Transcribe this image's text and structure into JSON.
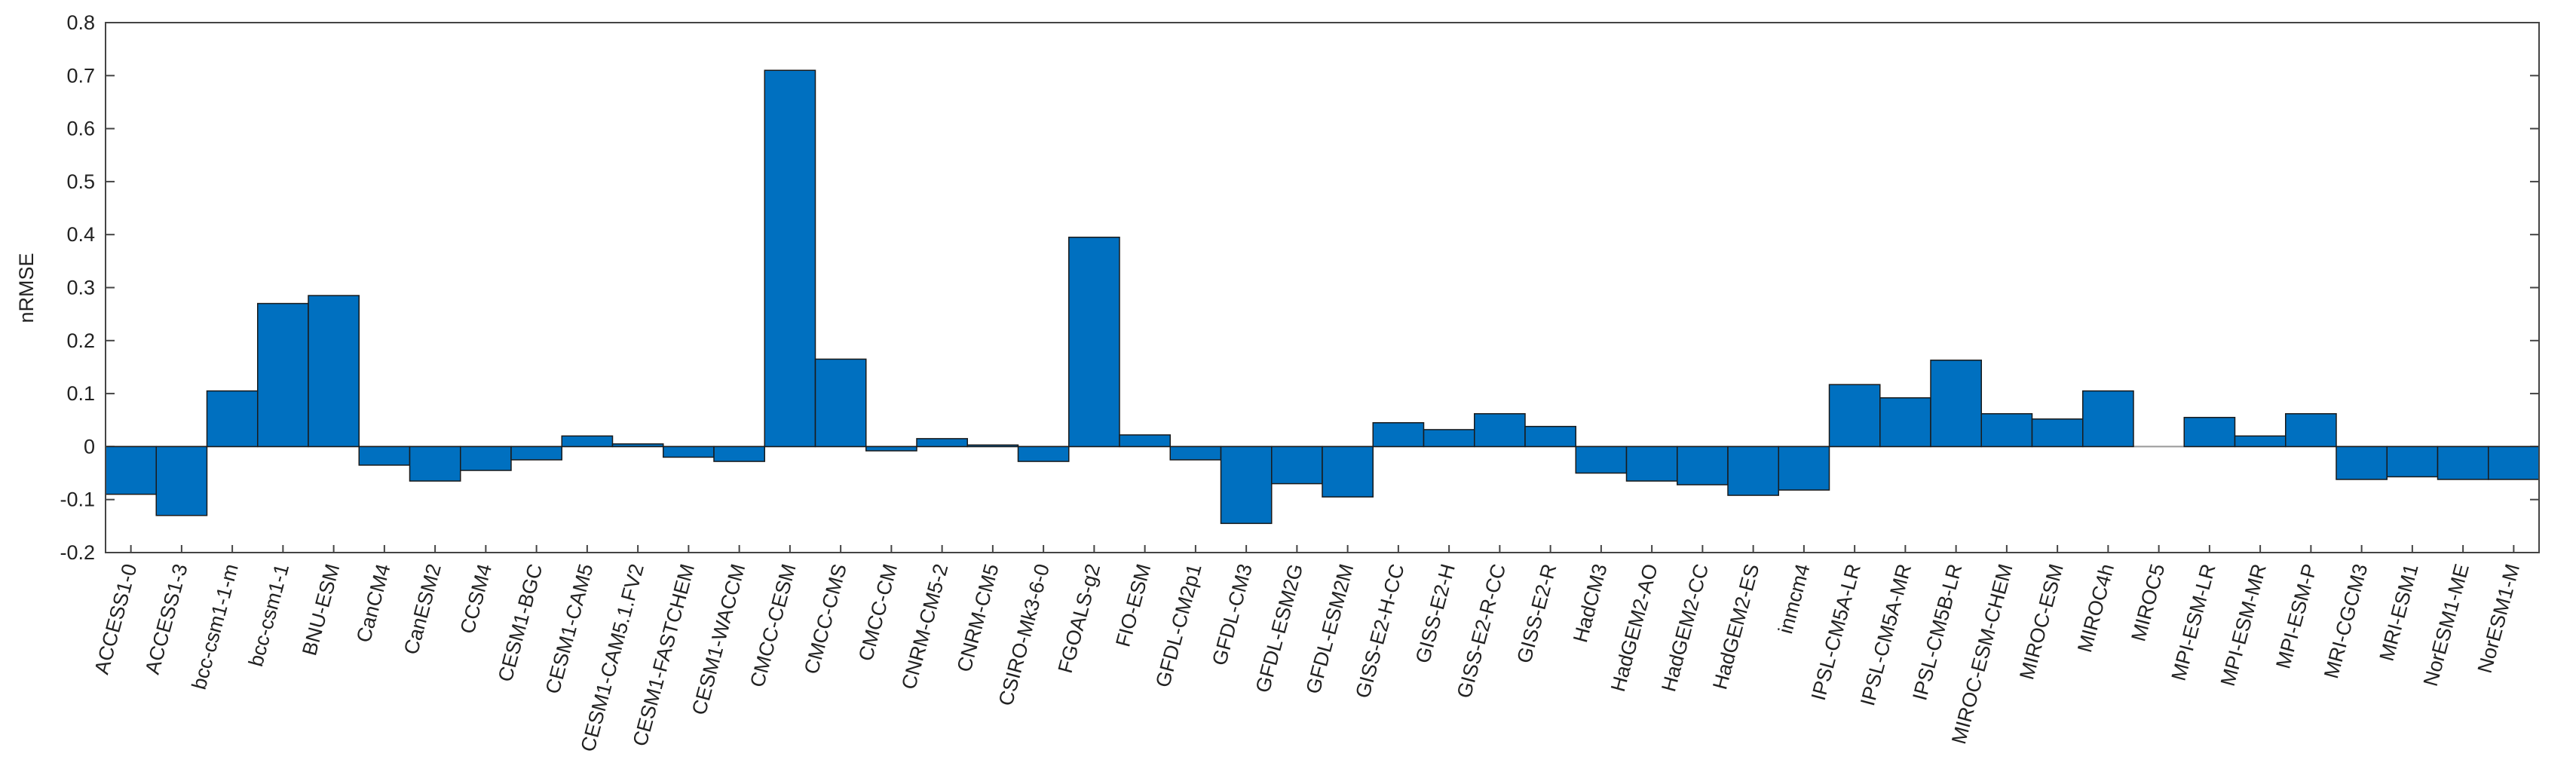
{
  "chart_data": {
    "type": "bar",
    "y_label": "nRMSE",
    "color": "#0070c0",
    "categories": [
      "ACCESS1-0",
      "ACCESS1-3",
      "bcc-csm1-1-m",
      "bcc-csm1-1",
      "BNU-ESM",
      "CanCM4",
      "CanESM2",
      "CCSM4",
      "CESM1-BGC",
      "CESM1-CAM5",
      "CESM1-CAM5.1.FV2",
      "CESM1-FASTCHEM",
      "CESM1-WACCM",
      "CMCC-CESM",
      "CMCC-CMS",
      "CMCC-CM",
      "CNRM-CM5-2",
      "CNRM-CM5",
      "CSIRO-Mk3-6-0",
      "FGOALS-g2",
      "FIO-ESM",
      "GFDL-CM2p1",
      "GFDL-CM3",
      "GFDL-ESM2G",
      "GFDL-ESM2M",
      "GISS-E2-H-CC",
      "GISS-E2-H",
      "GISS-E2-R-CC",
      "GISS-E2-R",
      "HadCM3",
      "HadGEM2-AO",
      "HadGEM2-CC",
      "HadGEM2-ES",
      "inmcm4",
      "IPSL-CM5A-LR",
      "IPSL-CM5A-MR",
      "IPSL-CM5B-LR",
      "MIROC-ESM-CHEM",
      "MIROC-ESM",
      "MIROC4h",
      "MIROC5",
      "MPI-ESM-LR",
      "MPI-ESM-MR",
      "MPI-ESM-P",
      "MRI-CGCM3",
      "MRI-ESM1",
      "NorESM1-ME",
      "NorESM1-M"
    ],
    "values": [
      -0.09,
      -0.13,
      0.105,
      0.27,
      0.285,
      -0.035,
      -0.065,
      -0.045,
      -0.025,
      0.02,
      0.005,
      -0.02,
      -0.028,
      0.71,
      0.165,
      -0.008,
      0.015,
      0.003,
      -0.028,
      0.395,
      0.022,
      -0.025,
      -0.145,
      -0.07,
      -0.095,
      0.045,
      0.032,
      0.062,
      0.038,
      -0.05,
      -0.065,
      -0.072,
      -0.092,
      -0.082,
      0.117,
      0.092,
      0.163,
      0.062,
      0.052,
      0.105,
      0,
      0.055,
      0.02,
      0.062,
      -0.062,
      -0.057,
      -0.062,
      -0.062
    ],
    "ylim": [
      -0.2,
      0.8
    ],
    "yticks": [
      -0.2,
      -0.1,
      0,
      0.1,
      0.2,
      0.3,
      0.4,
      0.5,
      0.6,
      0.7,
      0.8
    ]
  }
}
